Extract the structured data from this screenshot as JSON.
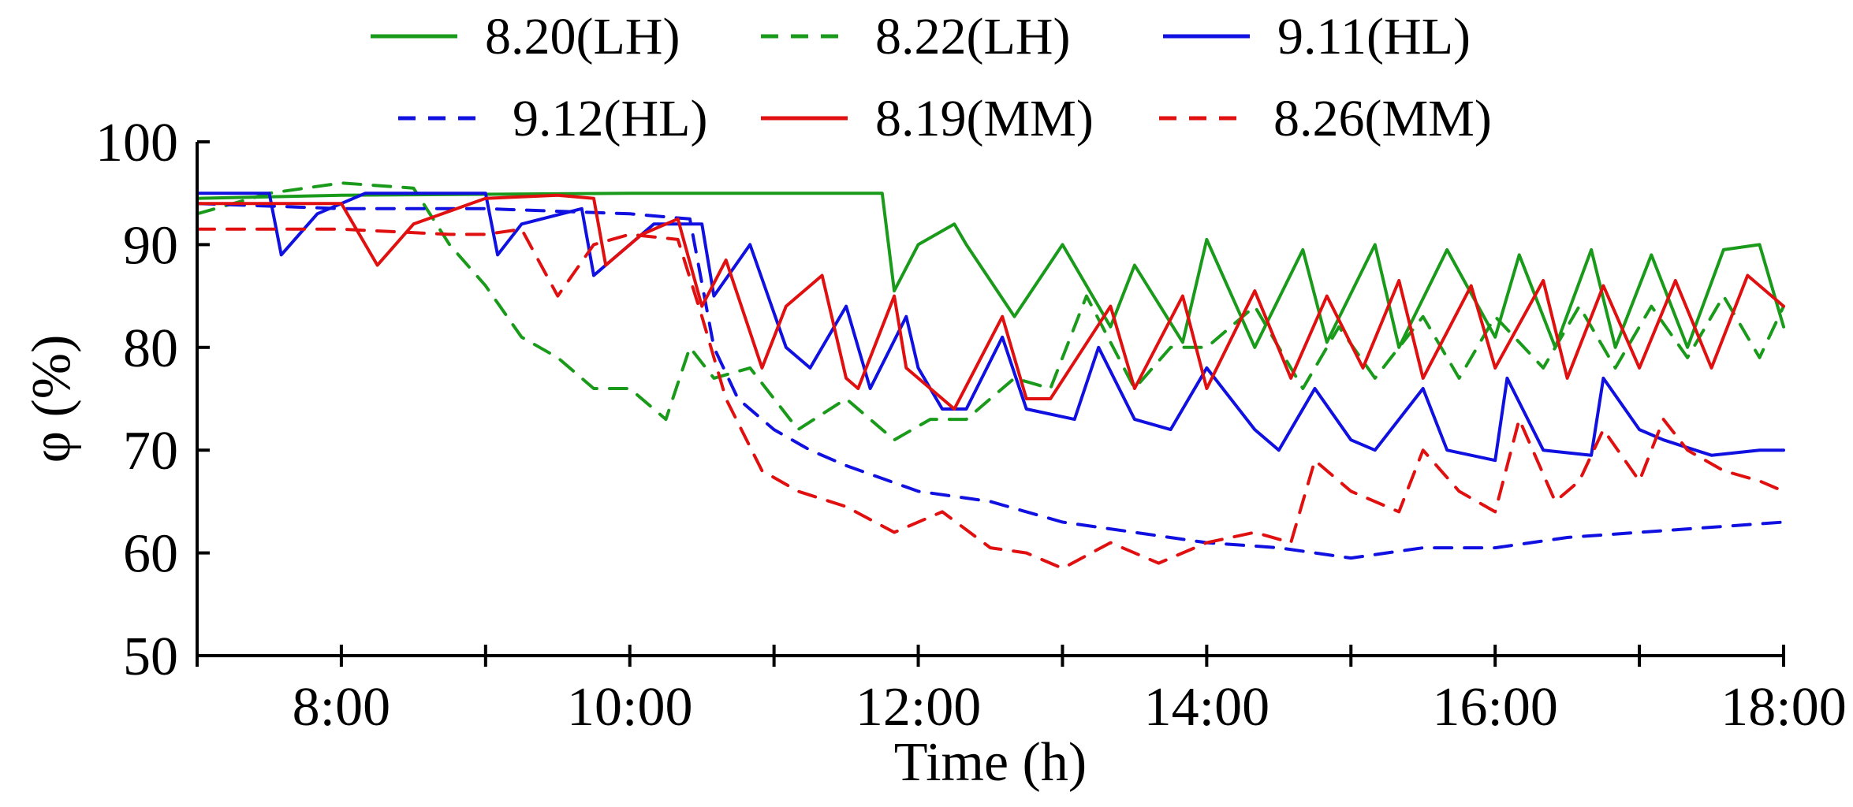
{
  "chart_data": {
    "type": "line",
    "title": "",
    "xlabel": "Time (h)",
    "ylabel": "φ (%)",
    "xlim": [
      "7:00",
      "18:00"
    ],
    "ylim": [
      50,
      100
    ],
    "x_tick_labels": [
      "8:00",
      "10:00",
      "12:00",
      "14:00",
      "16:00",
      "18:00"
    ],
    "y_tick_labels": [
      "50",
      "60",
      "70",
      "80",
      "90",
      "100"
    ],
    "grid": false,
    "legend_position": "top",
    "series": [
      {
        "name": "8.20(LH)",
        "color": "#1a9a1a",
        "dash": "solid",
        "x": [
          "7:00",
          "8:00",
          "9:00",
          "10:00",
          "11:00",
          "11:45",
          "11:50",
          "12:00",
          "12:15",
          "12:20",
          "12:40",
          "13:00",
          "13:20",
          "13:30",
          "13:50",
          "14:00",
          "14:20",
          "14:40",
          "14:50",
          "15:10",
          "15:20",
          "15:40",
          "16:00",
          "16:10",
          "16:25",
          "16:40",
          "16:50",
          "17:05",
          "17:20",
          "17:35",
          "17:50",
          "18:00"
        ],
        "y": [
          94.5,
          94.8,
          94.9,
          95.0,
          95.0,
          95.0,
          85.5,
          90.0,
          92.0,
          90.0,
          83.0,
          90.0,
          82.0,
          88.0,
          80.5,
          90.5,
          80.0,
          89.5,
          80.5,
          90.0,
          80.0,
          89.5,
          81.0,
          89.0,
          80.0,
          89.5,
          80.0,
          89.0,
          80.0,
          89.5,
          90.0,
          82.0
        ]
      },
      {
        "name": "8.22(LH)",
        "color": "#1a9a1a",
        "dash": "dashed",
        "x": [
          "7:00",
          "7:30",
          "8:00",
          "8:30",
          "8:45",
          "9:00",
          "9:15",
          "9:30",
          "9:45",
          "10:00",
          "10:15",
          "10:25",
          "10:35",
          "10:50",
          "11:10",
          "11:30",
          "11:50",
          "12:05",
          "12:20",
          "12:40",
          "12:55",
          "13:10",
          "13:30",
          "13:45",
          "14:00",
          "14:20",
          "14:40",
          "14:55",
          "15:10",
          "15:30",
          "15:45",
          "16:00",
          "16:20",
          "16:35",
          "16:50",
          "17:05",
          "17:20",
          "17:35",
          "17:50",
          "18:00"
        ],
        "y": [
          93.0,
          95.0,
          96.0,
          95.5,
          90.0,
          86.0,
          81.0,
          79.0,
          76.0,
          76.0,
          73.0,
          80.0,
          77.0,
          78.0,
          72.0,
          75.0,
          71.0,
          73.0,
          73.0,
          77.0,
          76.0,
          85.0,
          76.0,
          80.0,
          80.0,
          84.0,
          76.0,
          82.0,
          77.0,
          83.0,
          77.0,
          83.0,
          78.0,
          84.0,
          78.0,
          84.0,
          79.0,
          85.0,
          79.0,
          84.0
        ]
      },
      {
        "name": "9.11(HL)",
        "color": "#1010e0",
        "dash": "solid",
        "x": [
          "7:00",
          "7:30",
          "7:35",
          "7:50",
          "8:10",
          "9:00",
          "9:05",
          "9:15",
          "9:40",
          "9:45",
          "9:55",
          "10:10",
          "10:30",
          "10:35",
          "10:50",
          "11:05",
          "11:15",
          "11:30",
          "11:40",
          "11:55",
          "12:00",
          "12:10",
          "12:20",
          "12:35",
          "12:45",
          "13:05",
          "13:15",
          "13:30",
          "13:45",
          "14:00",
          "14:20",
          "14:30",
          "14:45",
          "15:00",
          "15:10",
          "15:30",
          "15:40",
          "16:00",
          "16:05",
          "16:20",
          "16:40",
          "16:45",
          "17:00",
          "17:10",
          "17:30",
          "17:50",
          "18:00"
        ],
        "y": [
          95.0,
          95.0,
          89.0,
          93.0,
          95.0,
          95.0,
          89.0,
          92.0,
          93.5,
          87.0,
          89.0,
          92.0,
          92.0,
          85.0,
          90.0,
          80.0,
          78.0,
          84.0,
          76.0,
          83.0,
          78.0,
          74.0,
          74.0,
          81.0,
          74.0,
          73.0,
          80.0,
          73.0,
          72.0,
          78.0,
          72.0,
          70.0,
          76.0,
          71.0,
          70.0,
          76.0,
          70.0,
          69.0,
          77.0,
          70.0,
          69.5,
          77.0,
          72.0,
          71.0,
          69.5,
          70.0,
          70.0
        ]
      },
      {
        "name": "9.12(HL)",
        "color": "#1010e0",
        "dash": "dashed",
        "x": [
          "7:00",
          "8:00",
          "9:00",
          "10:00",
          "10:25",
          "10:35",
          "10:45",
          "11:00",
          "11:15",
          "11:30",
          "12:00",
          "12:30",
          "13:00",
          "13:30",
          "14:00",
          "14:30",
          "15:00",
          "15:30",
          "16:00",
          "16:30",
          "17:00",
          "17:30",
          "18:00"
        ],
        "y": [
          94.0,
          93.5,
          93.5,
          93.0,
          92.5,
          80.0,
          75.0,
          72.0,
          70.0,
          68.5,
          66.0,
          65.0,
          63.0,
          62.0,
          61.0,
          60.5,
          59.5,
          60.5,
          60.5,
          61.5,
          62.0,
          62.5,
          63.0
        ]
      },
      {
        "name": "8.19(MM)",
        "color": "#e01010",
        "dash": "solid",
        "x": [
          "7:00",
          "8:00",
          "8:15",
          "8:30",
          "9:00",
          "9:30",
          "9:45",
          "9:50",
          "10:05",
          "10:20",
          "10:30",
          "10:40",
          "10:55",
          "11:05",
          "11:20",
          "11:30",
          "11:35",
          "11:50",
          "11:55",
          "12:15",
          "12:35",
          "12:45",
          "12:55",
          "13:20",
          "13:30",
          "13:50",
          "14:00",
          "14:20",
          "14:35",
          "14:50",
          "15:05",
          "15:20",
          "15:30",
          "15:50",
          "16:00",
          "16:20",
          "16:30",
          "16:45",
          "17:00",
          "17:15",
          "17:30",
          "17:45",
          "18:00"
        ],
        "y": [
          94.0,
          94.0,
          88.0,
          92.0,
          94.5,
          94.8,
          94.5,
          88.0,
          91.0,
          92.5,
          84.0,
          88.5,
          78.0,
          84.0,
          87.0,
          77.0,
          76.0,
          85.0,
          78.0,
          74.0,
          83.0,
          75.0,
          75.0,
          84.0,
          76.0,
          85.0,
          76.0,
          85.5,
          77.0,
          85.0,
          78.0,
          86.5,
          77.0,
          86.0,
          78.0,
          86.5,
          77.0,
          86.0,
          78.0,
          86.5,
          78.0,
          87.0,
          84.0
        ]
      },
      {
        "name": "8.26(MM)",
        "color": "#e01010",
        "dash": "dashed",
        "x": [
          "7:00",
          "8:00",
          "8:45",
          "9:00",
          "9:15",
          "9:30",
          "9:45",
          "10:00",
          "10:20",
          "10:30",
          "10:40",
          "10:55",
          "11:10",
          "11:30",
          "11:50",
          "12:10",
          "12:30",
          "12:45",
          "13:00",
          "13:20",
          "13:40",
          "14:00",
          "14:20",
          "14:35",
          "14:45",
          "15:00",
          "15:20",
          "15:30",
          "15:45",
          "16:00",
          "16:10",
          "16:25",
          "16:35",
          "16:45",
          "17:00",
          "17:10",
          "17:20",
          "17:35",
          "17:50",
          "18:00"
        ],
        "y": [
          91.5,
          91.5,
          91.0,
          91.0,
          91.5,
          85.0,
          90.0,
          91.0,
          90.5,
          83.0,
          75.0,
          68.0,
          66.0,
          64.5,
          62.0,
          64.0,
          60.5,
          60.0,
          58.5,
          61.0,
          59.0,
          61.0,
          62.0,
          61.0,
          69.0,
          66.0,
          64.0,
          70.0,
          66.0,
          64.0,
          73.0,
          65.0,
          67.0,
          72.0,
          67.0,
          73.0,
          70.0,
          68.0,
          67.0,
          66.0
        ]
      }
    ]
  }
}
